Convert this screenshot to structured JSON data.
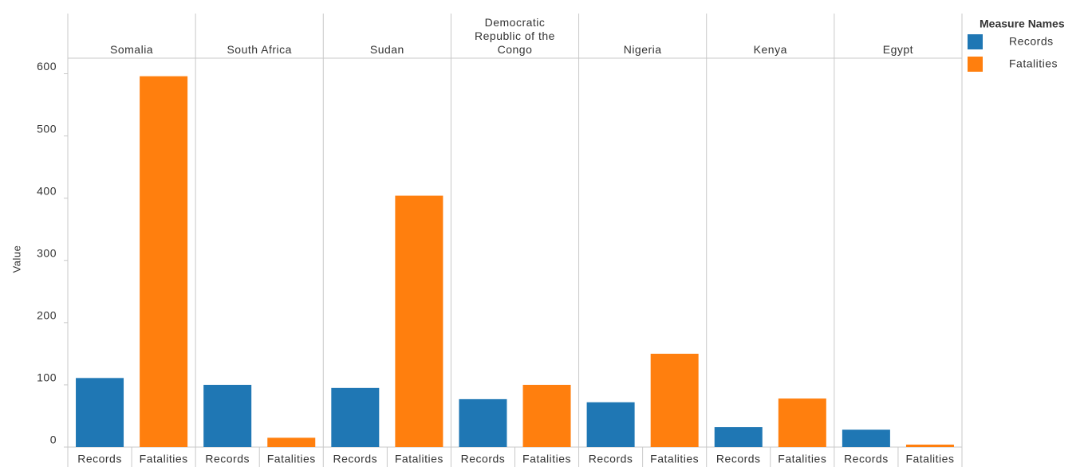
{
  "chart_data": {
    "type": "bar",
    "y_label": "Value",
    "legend_title": "Measure Names",
    "categories": [
      "Somalia",
      "South Africa",
      "Sudan",
      "Democratic Republic of the Congo",
      "Nigeria",
      "Kenya",
      "Egypt"
    ],
    "series": [
      {
        "name": "Records",
        "color": "#1f77b4",
        "values": [
          111,
          100,
          95,
          77,
          72,
          32,
          28
        ]
      },
      {
        "name": "Fatalities",
        "color": "#ff7f0e",
        "values": [
          596,
          15,
          404,
          100,
          150,
          78,
          4
        ]
      }
    ],
    "ylim": [
      0,
      625
    ],
    "yticks": [
      0,
      100,
      200,
      300,
      400,
      500,
      600
    ],
    "grid": false,
    "legend": "right"
  }
}
